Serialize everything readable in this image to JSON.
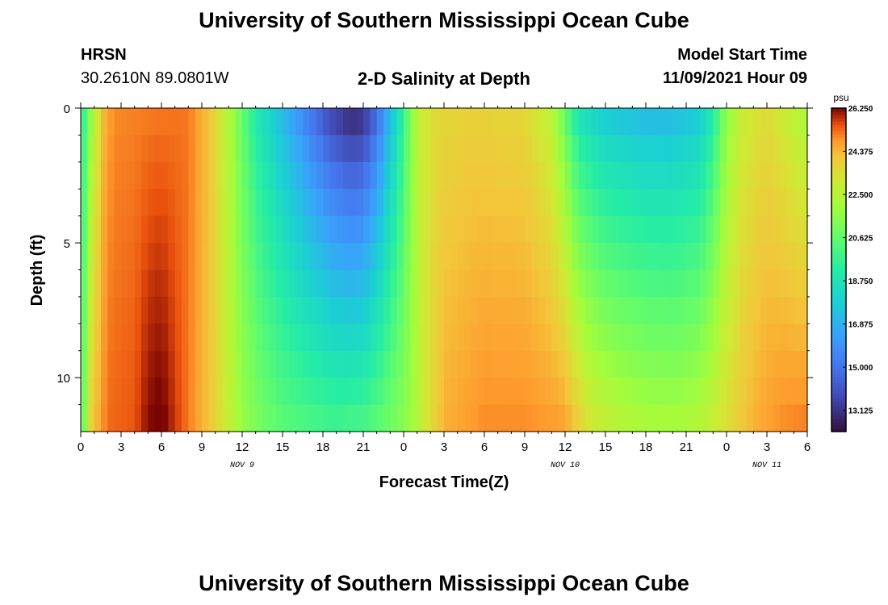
{
  "page": {
    "title": "University of Southern Mississippi Ocean Cube",
    "footer_title": "University of Southern Mississippi Ocean Cube",
    "station": "HRSN",
    "coords": "30.2610N  89.0801W",
    "subtitle": "2-D Salinity at Depth",
    "model_start_label": "Model Start Time",
    "model_start_value": "11/09/2021 Hour 09"
  },
  "chart_data": {
    "type": "heatmap",
    "title": "2-D Salinity at Depth",
    "xlabel": "Forecast Time(Z)",
    "ylabel": "Depth (ft)",
    "x_ticks": [
      "0",
      "3",
      "6",
      "9",
      "12",
      "15",
      "18",
      "21",
      "0",
      "3",
      "6",
      "9",
      "12",
      "15",
      "18",
      "21",
      "0",
      "3",
      "6"
    ],
    "x_hours": [
      0,
      3,
      6,
      9,
      12,
      15,
      18,
      21,
      24,
      27,
      30,
      33,
      36,
      39,
      42,
      45,
      48,
      51,
      54
    ],
    "xlim_hours": [
      0,
      54
    ],
    "date_labels": [
      {
        "text": "NOV 9",
        "hour": 12
      },
      {
        "text": "NOV 10",
        "hour": 36
      },
      {
        "text": "NOV 11",
        "hour": 51
      }
    ],
    "y_ticks": [
      "0",
      "5",
      "10"
    ],
    "y_tick_values": [
      0,
      5,
      10
    ],
    "ylim": [
      0,
      12
    ],
    "colorbar": {
      "unit": "psu",
      "min": 12.2,
      "max": 26.25,
      "tick_labels": [
        "26.250",
        "24.375",
        "22.500",
        "20.625",
        "18.750",
        "16.875",
        "15.000",
        "13.125"
      ],
      "tick_values": [
        26.25,
        24.375,
        22.5,
        20.625,
        18.75,
        16.875,
        15.0,
        13.125
      ]
    },
    "salinity_model": {
      "description": "salinity (psu) vs forecast hour, surface and bottom; depth interpolated",
      "surface": [
        [
          0,
          19
        ],
        [
          0.6,
          21
        ],
        [
          1.2,
          23
        ],
        [
          1.8,
          24.5
        ],
        [
          2.5,
          25
        ],
        [
          8,
          25.2
        ],
        [
          9.5,
          24.2
        ],
        [
          10.5,
          23
        ],
        [
          11.5,
          21.5
        ],
        [
          13,
          19
        ],
        [
          14,
          18
        ],
        [
          15.5,
          16.5
        ],
        [
          17,
          15
        ],
        [
          18.5,
          13.5
        ],
        [
          20,
          12.6
        ],
        [
          21,
          12.8
        ],
        [
          22,
          14.5
        ],
        [
          23,
          17
        ],
        [
          24,
          19.5
        ],
        [
          24.6,
          21.5
        ],
        [
          25.3,
          23
        ],
        [
          26.5,
          23.6
        ],
        [
          29,
          23.8
        ],
        [
          33,
          23.6
        ],
        [
          35,
          22.5
        ],
        [
          36,
          20.5
        ],
        [
          37,
          18.5
        ],
        [
          39,
          17.5
        ],
        [
          42,
          17
        ],
        [
          44,
          17
        ],
        [
          46,
          17.5
        ],
        [
          47,
          19
        ],
        [
          48,
          21.5
        ],
        [
          49,
          22.8
        ],
        [
          51,
          23.5
        ],
        [
          54,
          22
        ]
      ],
      "bottom": [
        [
          0,
          20
        ],
        [
          0.8,
          24
        ],
        [
          2,
          25.3
        ],
        [
          4,
          25.5
        ],
        [
          5,
          26.2
        ],
        [
          6,
          26.4
        ],
        [
          7,
          25.8
        ],
        [
          9,
          24.5
        ],
        [
          10,
          23.8
        ],
        [
          11,
          22.8
        ],
        [
          12,
          21.8
        ],
        [
          13.5,
          21
        ],
        [
          15,
          20.5
        ],
        [
          17,
          20.2
        ],
        [
          19,
          20
        ],
        [
          21,
          20.2
        ],
        [
          23,
          21
        ],
        [
          24.5,
          21.8
        ],
        [
          26,
          23.5
        ],
        [
          27,
          24.5
        ],
        [
          30,
          25
        ],
        [
          33,
          25
        ],
        [
          36,
          24.8
        ],
        [
          37,
          24
        ],
        [
          38,
          23.2
        ],
        [
          40,
          22.6
        ],
        [
          42,
          22.3
        ],
        [
          44,
          22.2
        ],
        [
          46,
          22.5
        ],
        [
          48,
          23.5
        ],
        [
          50,
          24.5
        ],
        [
          52,
          25
        ],
        [
          54,
          25.2
        ]
      ]
    }
  }
}
